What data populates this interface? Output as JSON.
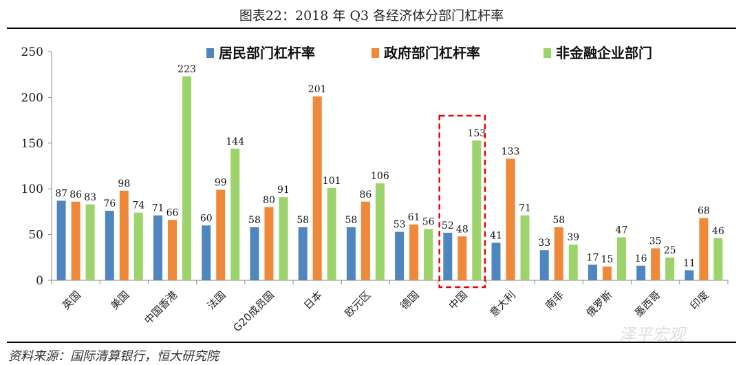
{
  "chart_data": {
    "type": "bar",
    "title": "图表22：2018 年 Q3 各经济体分部门杠杆率",
    "categories": [
      "英国",
      "美国",
      "中国香港",
      "法国",
      "G20成员国",
      "日本",
      "欧元区",
      "德国",
      "中国",
      "意大利",
      "南非",
      "俄罗斯",
      "墨西哥",
      "印度"
    ],
    "series": [
      {
        "name": "居民部门杠杆率",
        "color": "#4f86c0",
        "values": [
          87,
          76,
          71,
          60,
          58,
          58,
          58,
          53,
          52,
          41,
          33,
          17,
          16,
          11
        ]
      },
      {
        "name": "政府部门杠杆率",
        "color": "#f0883a",
        "values": [
          86,
          98,
          66,
          99,
          80,
          201,
          86,
          61,
          48,
          133,
          58,
          15,
          35,
          68
        ]
      },
      {
        "name": "非金融企业部门",
        "color": "#9dd36b",
        "values": [
          83,
          74,
          223,
          144,
          91,
          101,
          106,
          56,
          153,
          71,
          39,
          47,
          25,
          46
        ]
      }
    ],
    "yticks": [
      "0",
      "50",
      "100",
      "150",
      "200",
      "250"
    ],
    "ylim": [
      0,
      250
    ],
    "xlabel": "",
    "ylabel": "",
    "legend": "top",
    "highlight_category": "中国"
  },
  "source": "资料来源：国际清算银行，恒大研究院",
  "watermark": "泽平宏观"
}
